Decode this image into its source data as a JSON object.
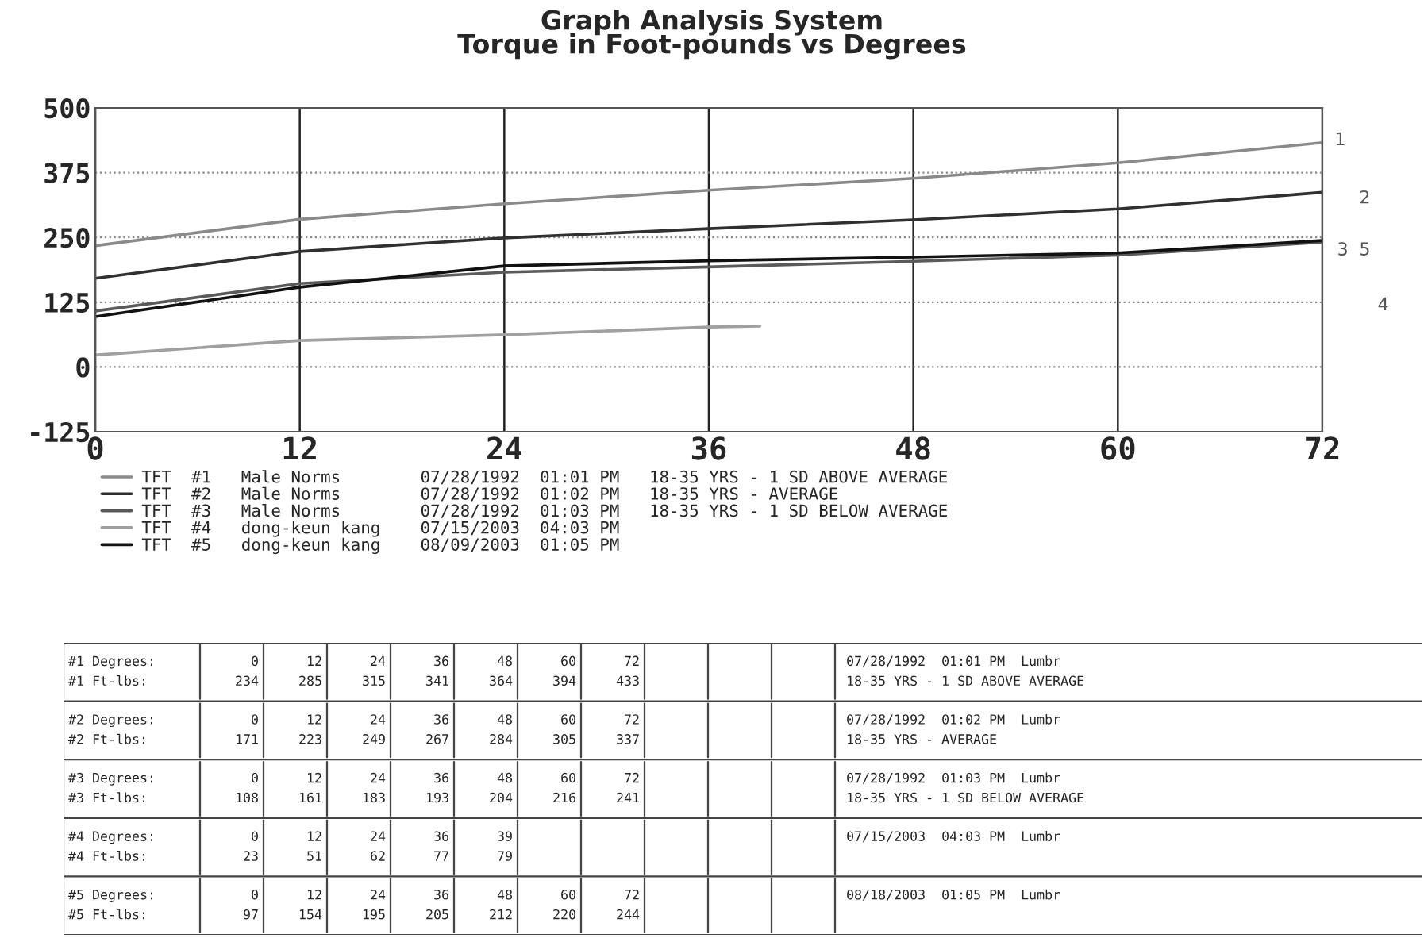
{
  "chart_data": [
    {
      "type": "line",
      "title": "Graph Analysis System\nTorque in Foot-pounds vs Degrees",
      "xlim": [
        0,
        72
      ],
      "xticks": [
        0,
        12,
        24,
        36,
        48,
        60,
        72
      ],
      "ylim": [
        -125,
        500
      ],
      "yticks": [
        -125,
        0,
        125,
        250,
        375,
        500
      ],
      "grid": true,
      "legend": "bottom",
      "marker": "none",
      "line_style": "solid",
      "series": [
        {
          "name": "TFT  #1   Male Norms        07/28/1992  01:01 PM   18-35 YRS - 1 SD ABOVE AVERAGE",
          "color": "#8a8a8a",
          "x": [
            0,
            12,
            24,
            36,
            48,
            60,
            72
          ],
          "values": [
            234,
            285,
            315,
            341,
            364,
            394,
            433
          ]
        },
        {
          "name": "TFT  #2   Male Norms        07/28/1992  01:02 PM   18-35 YRS - AVERAGE",
          "color": "#303030",
          "x": [
            0,
            12,
            24,
            36,
            48,
            60,
            72
          ],
          "values": [
            171,
            223,
            249,
            267,
            284,
            305,
            337
          ]
        },
        {
          "name": "TFT  #3   Male Norms        07/28/1992  01:03 PM   18-35 YRS - 1 SD BELOW AVERAGE",
          "color": "#5a5a5a",
          "x": [
            0,
            12,
            24,
            36,
            48,
            60,
            72
          ],
          "values": [
            108,
            161,
            183,
            193,
            204,
            216,
            241
          ]
        },
        {
          "name": "TFT  #4   dong-keun kang    07/15/2003  04:03 PM",
          "color": "#a0a0a0",
          "x": [
            0,
            12,
            24,
            36,
            39
          ],
          "values": [
            23,
            51,
            62,
            77,
            79
          ]
        },
        {
          "name": "TFT  #5   dong-keun kang    08/09/2003  01:05 PM",
          "color": "#111111",
          "x": [
            0,
            12,
            24,
            36,
            48,
            60,
            72
          ],
          "values": [
            97,
            154,
            195,
            205,
            212,
            220,
            244
          ]
        }
      ],
      "annotations": [
        "1",
        "2",
        "3",
        "5",
        "4"
      ]
    },
    {
      "type": "other",
      "annotations": [
        "#1 Degrees:            0      12      24      36      48      60      72                          07/28/1992  01:01 PM  Lumbr",
        "#1 Ft-lbs:           234     285     315     341     364     394     433                          18-35 YRS - 1 SD ABOVE AVERAGE",
        "#2 Degrees:            0      12      24      36      48      60      72                          07/28/1992  01:02 PM  Lumbr",
        "#2 Ft-lbs:           171     223     249     267     284     305     337                          18-35 YRS - AVERAGE",
        "#3 Degrees:            0      12      24      36      48      60      72                          07/28/1992  01:03 PM  Lumbr",
        "#3 Ft-lbs:           108     161     183     193     204     216     241                          18-35 YRS - 1 SD BELOW AVERAGE",
        "#4 Degrees:            0      12      24      36      39                                          07/15/2003  04:03 PM  Lumbr",
        "#4 Ft-lbs:            23      51      62      77      79",
        "#5 Degrees:            0      12      24      36      48      60      72                          08/18/2003  01:05 PM  Lumbr",
        "#5 Ft-lbs:            97     154     195     205     212     220     244"
      ]
    }
  ]
}
